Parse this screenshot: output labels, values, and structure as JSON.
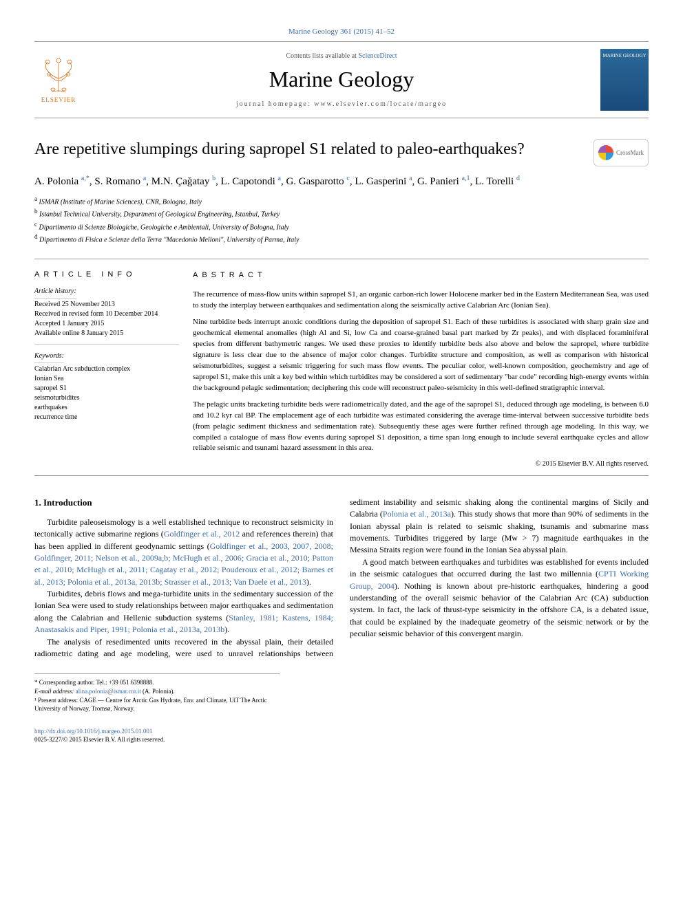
{
  "journal_ref": "Marine Geology 361 (2015) 41–52",
  "header": {
    "contents_prefix": "Contents lists available at ",
    "contents_link": "ScienceDirect",
    "journal_name": "Marine Geology",
    "homepage_prefix": "journal homepage: ",
    "homepage_url": "www.elsevier.com/locate/margeo",
    "elsevier_label": "ELSEVIER",
    "cover_label": "MARINE GEOLOGY"
  },
  "crossmark_label": "CrossMark",
  "title": "Are repetitive slumpings during sapropel S1 related to paleo-earthquakes?",
  "authors_html": "A. Polonia <sup>a,*</sup>, S. Romano <sup>a</sup>, M.N. Çağatay <sup>b</sup>, L. Capotondi <sup>a</sup>, G. Gasparotto <sup>c</sup>, L. Gasperini <sup>a</sup>, G. Panieri <sup>a,1</sup>, L. Torelli <sup>d</sup>",
  "affiliations": [
    {
      "sup": "a",
      "text": "ISMAR (Institute of Marine Sciences), CNR, Bologna, Italy"
    },
    {
      "sup": "b",
      "text": "Istanbul Technical University, Department of Geological Engineering, Istanbul, Turkey"
    },
    {
      "sup": "c",
      "text": "Dipartimento di Scienze Biologiche, Geologiche e Ambientali, University of Bologna, Italy"
    },
    {
      "sup": "d",
      "text": "Dipartimento di Fisica e Scienze della Terra \"Macedonio Melloni\", University of Parma, Italy"
    }
  ],
  "info": {
    "heading": "article info",
    "history_label": "Article history:",
    "history": [
      "Received 25 November 2013",
      "Received in revised form 10 December 2014",
      "Accepted 1 January 2015",
      "Available online 8 January 2015"
    ],
    "keywords_label": "Keywords:",
    "keywords": [
      "Calabrian Arc subduction complex",
      "Ionian Sea",
      "sapropel S1",
      "seismoturbidites",
      "earthquakes",
      "recurrence time"
    ]
  },
  "abstract": {
    "heading": "abstract",
    "paragraphs": [
      "The recurrence of mass-flow units within sapropel S1, an organic carbon-rich lower Holocene marker bed in the Eastern Mediterranean Sea, was used to study the interplay between earthquakes and sedimentation along the seismically active Calabrian Arc (Ionian Sea).",
      "Nine turbidite beds interrupt anoxic conditions during the deposition of sapropel S1. Each of these turbidites is associated with sharp grain size and geochemical elemental anomalies (high Al and Si, low Ca and coarse-grained basal part marked by Zr peaks), and with displaced foraminiferal species from different bathymetric ranges. We used these proxies to identify turbidite beds also above and below the sapropel, where turbidite signature is less clear due to the absence of major color changes. Turbidite structure and composition, as well as comparison with historical seismoturbidites, suggest a seismic triggering for such mass flow events. The peculiar color, well-known composition, geochemistry and age of sapropel S1, make this unit a key bed within which turbidites may be considered a sort of sedimentary \"bar code\" recording high-energy events within the background pelagic sedimentation; deciphering this code will reconstruct paleo-seismicity in this well-defined stratigraphic interval.",
      "The pelagic units bracketing turbidite beds were radiometrically dated, and the age of the sapropel S1, deduced through age modeling, is between 6.0 and 10.2 kyr cal BP. The emplacement age of each turbidite was estimated considering the average time-interval between successive turbidite beds (from pelagic sediment thickness and sedimentation rate). Subsequently these ages were further refined through age modeling. In this way, we compiled a catalogue of mass flow events during sapropel S1 deposition, a time span long enough to include several earthquake cycles and allow reliable seismic and tsunami hazard assessment in this area."
    ],
    "copyright": "© 2015 Elsevier B.V. All rights reserved."
  },
  "body": {
    "section_heading": "1. Introduction",
    "para1_a": "Turbidite paleoseismology is a well established technique to reconstruct seismicity in tectonically active submarine regions (",
    "para1_ref1": "Goldfinger et al., 2012",
    "para1_b": " and references therein) that has been applied in different geodynamic settings (",
    "para1_ref2": "Goldfinger et al., 2003, 2007, 2008; Goldfinger, 2011; Nelson et al., 2009a,b; McHugh et al., 2006; Gracia et al., 2010; Patton et al., 2010; McHugh et al., 2011; Cagatay et al., 2012; Pouderoux et al., 2012; Barnes et al., 2013; Polonia et al., 2013a, 2013b; Strasser et al., 2013; Van Daele et al., 2013",
    "para1_c": ").",
    "para2_a": "Turbidites, debris flows and mega-turbidite units in the sedimentary succession of the Ionian Sea were used to study relationships between major earthquakes and sedimentation along the Calabrian and Hellenic ",
    "para2_b": "subduction systems (",
    "para2_ref": "Stanley, 1981; Kastens, 1984; Anastasakis and Piper, 1991; Polonia et al., 2013a, 2013b",
    "para2_c": ").",
    "para3_a": "The analysis of resedimented units recovered in the abyssal plain, their detailed radiometric dating and age modeling, were used to unravel relationships between sediment instability and seismic shaking along the continental margins of Sicily and Calabria (",
    "para3_ref": "Polonia et al., 2013a",
    "para3_b": "). This study shows that more than 90% of sediments in the Ionian abyssal plain is related to seismic shaking, tsunamis and submarine mass movements. Turbidites triggered by large (Mw > 7) magnitude earthquakes in the Messina Straits region were found in the Ionian Sea abyssal plain.",
    "para4_a": "A good match between earthquakes and turbidites was established for events included in the seismic catalogues that occurred during the last two millennia (",
    "para4_ref": "CPTI Working Group, 2004",
    "para4_b": "). Nothing is known about pre-historic earthquakes, hindering a good understanding of the overall seismic behavior of the Calabrian Arc (CA) subduction system. In fact, the lack of thrust-type seismicity in the offshore CA, is a debated issue, that could be explained by the inadequate geometry of the seismic network or by the peculiar seismic behavior of this convergent margin."
  },
  "footnotes": {
    "corr": "* Corresponding author. Tel.: +39 051 6398888.",
    "email_label": "E-mail address: ",
    "email": "alina.polonia@ismar.cnr.it",
    "email_suffix": " (A. Polonia).",
    "note1": "¹ Present address: CAGE — Centre for Arctic Gas Hydrate, Env. and Climate, UiT The Arctic University of Norway, Tromsø, Norway."
  },
  "footer": {
    "doi": "http://dx.doi.org/10.1016/j.margeo.2015.01.001",
    "issn_line": "0025-3227/© 2015 Elsevier B.V. All rights reserved."
  },
  "colors": {
    "link": "#3a6aa8",
    "elsevier": "#d97016",
    "text": "#000000",
    "rule": "#999999"
  }
}
